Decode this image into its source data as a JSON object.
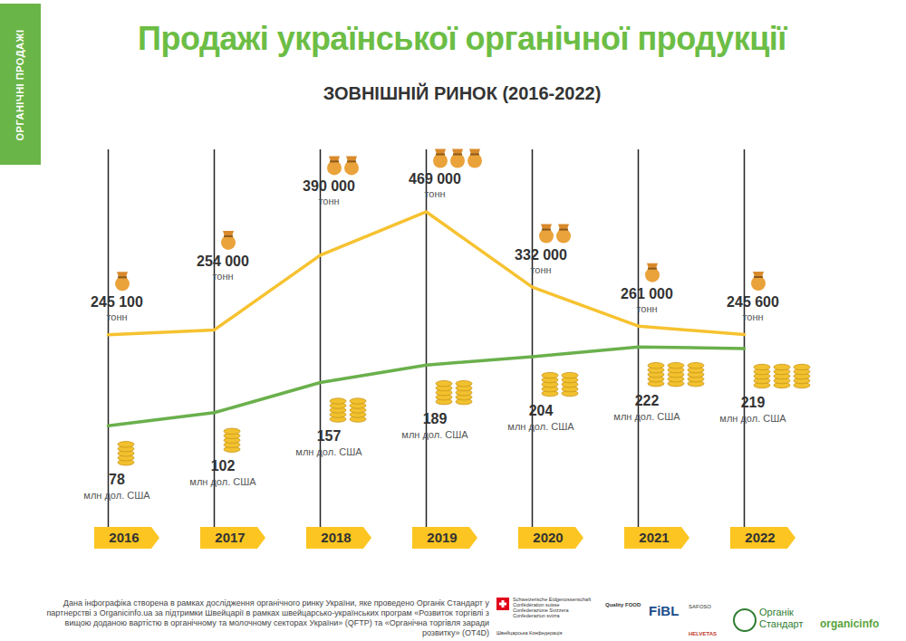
{
  "chart_data": {
    "type": "line",
    "title": "Продажі української органічної продукції",
    "subtitle": "ЗОВНІШНІЙ РИНОК (2016-2022)",
    "side_label": "ОРГАНІЧНІ ПРОДАЖІ",
    "categories": [
      "2016",
      "2017",
      "2018",
      "2019",
      "2020",
      "2021",
      "2022"
    ],
    "series": [
      {
        "name": "тонн",
        "color": "#f6c230",
        "values": [
          245100,
          254000,
          390000,
          469000,
          332000,
          261000,
          245600
        ],
        "value_labels": [
          "245 100",
          "254 000",
          "390 000",
          "469 000",
          "332 000",
          "261 000",
          "245 600"
        ]
      },
      {
        "name": "млн дол. США",
        "color": "#6ab04c",
        "axis": "y2",
        "values": [
          78,
          102,
          157,
          189,
          204,
          222,
          219
        ]
      }
    ],
    "ylim": [
      0,
      600000
    ],
    "y2lim": [
      0,
      400
    ],
    "tick_labels": "x",
    "data_labels": true,
    "footnote": "Дана інфографіка створена в рамках дослідження органічного ринку України, яке проведено Органік Стандарт у партнерстві з Organicinfo.ua за підтримки Швейцарії в рамках швейцарсько-українських програм «Розвиток торгівлі з вищою доданою вартістю в органічному та молочному секторах України» (QFTP) та «Органічна торгівля заради розвитку» (OT4D)",
    "logos": [
      "Schweizerische Eidgenossenschaft",
      "Confédération suisse",
      "Confederazione Svizzera",
      "Confederaziun svizra",
      "Швейцарська Конфедерація",
      "Quality FOOD",
      "FiBL",
      "SAFOSO",
      "HELVETAS",
      "Органік Стандарт",
      "organicinfo"
    ]
  }
}
